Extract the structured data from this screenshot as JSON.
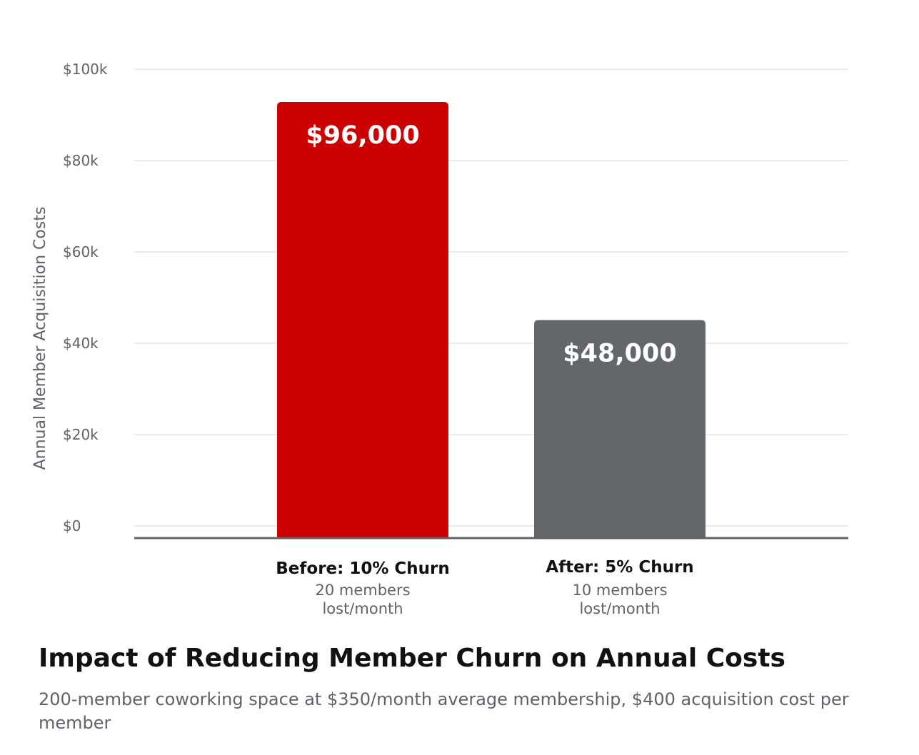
{
  "chart_data": {
    "type": "bar",
    "title": "Impact of Reducing Member Churn on Annual Costs",
    "subtitle": "200-member coworking space at $350/month average membership, $400 acquisition cost per member",
    "ylabel": "Annual Member Acquisition Costs",
    "xlabel": "",
    "ylim": [
      0,
      100000
    ],
    "yticks": [
      0,
      20000,
      40000,
      60000,
      80000,
      100000
    ],
    "ytick_labels": [
      "$0",
      "$20k",
      "$40k",
      "$60k",
      "$80k",
      "$100k"
    ],
    "grid": true,
    "categories": [
      "Before: 10% Churn",
      "After: 5% Churn"
    ],
    "category_sublabels": [
      [
        "20 members",
        "lost/month"
      ],
      [
        "10 members",
        "lost/month"
      ]
    ],
    "values": [
      96000,
      48000
    ],
    "data_labels": [
      "$96,000",
      "$48,000"
    ],
    "colors": [
      "#cc0000",
      "#63666a"
    ]
  }
}
